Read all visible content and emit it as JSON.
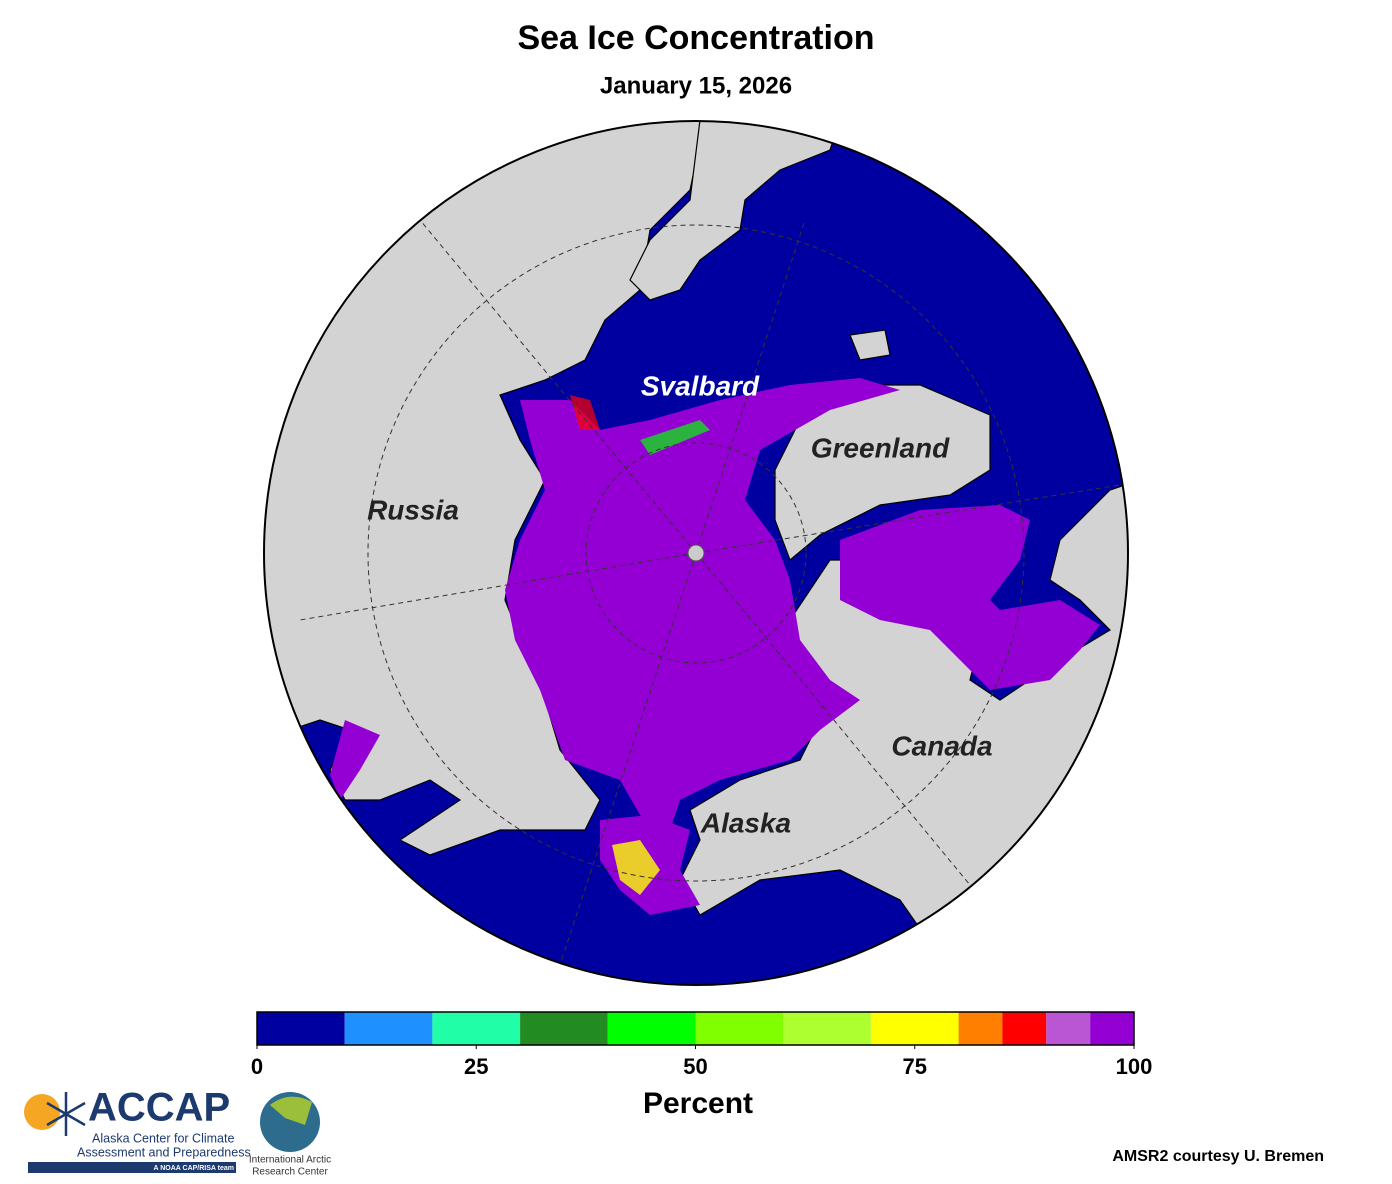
{
  "header": {
    "title": "Sea Ice Concentration",
    "subtitle": "January 15, 2026"
  },
  "map": {
    "labels": [
      "Svalbard",
      "Greenland",
      "Russia",
      "Canada",
      "Alaska"
    ]
  },
  "colorbar": {
    "lim": [
      0,
      100
    ],
    "bounds": [
      0,
      10,
      20,
      30,
      40,
      50,
      60,
      70,
      80,
      85,
      90,
      95,
      100
    ],
    "colors": [
      "#0000a0",
      "#1e90ff",
      "#20ffa8",
      "#228b22",
      "#00ff00",
      "#7fff00",
      "#adff2f",
      "#ffff00",
      "#ff8000",
      "#ff0000",
      "#ba55d3",
      "#9400d3"
    ],
    "ticks": [
      0,
      25,
      50,
      75,
      100
    ],
    "label": "Percent"
  },
  "footer": {
    "credit": "AMSR2 courtesy U. Bremen",
    "accap": "ACCAP",
    "accap_line1": "Alaska Center for Climate",
    "accap_line2": "Assessment and Preparedness",
    "accap_tag": "A NOAA CAP/RISA team",
    "iarc_line1": "International Arctic",
    "iarc_line2": "Research Center"
  }
}
